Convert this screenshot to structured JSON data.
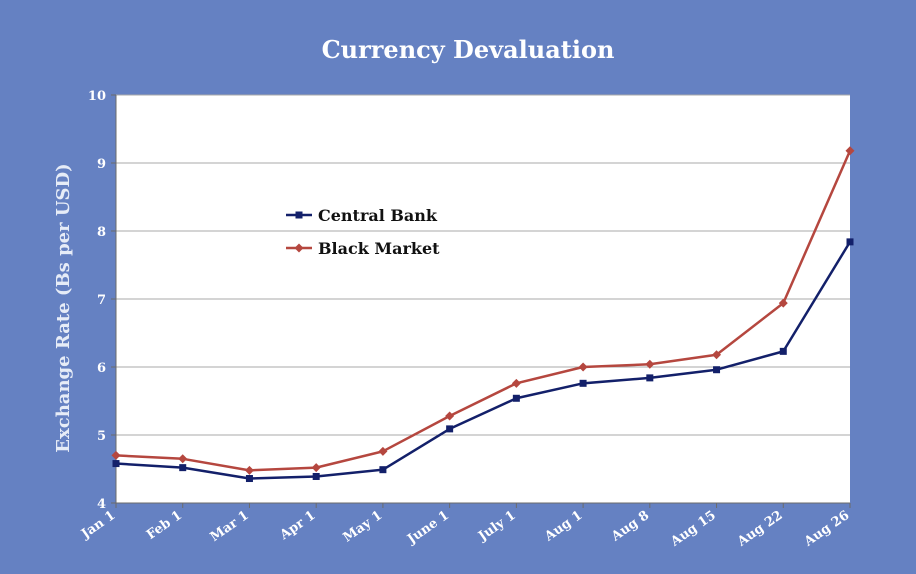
{
  "chart_data": {
    "type": "line",
    "title": "Currency Devaluation",
    "xlabel": "",
    "ylabel": "Exchange Rate (Bs per USD)",
    "categories": [
      "Jan 1",
      "Feb 1",
      "Mar 1",
      "Apr 1",
      "May 1",
      "June 1",
      "July 1",
      "Aug 1",
      "Aug 8",
      "Aug 15",
      "Aug 22",
      "Aug 26"
    ],
    "ylim": [
      4,
      10
    ],
    "yticks": [
      4,
      5,
      6,
      7,
      8,
      9,
      10
    ],
    "grid": true,
    "legend_position": "upper-left inside plot",
    "series": [
      {
        "name": "Central Bank",
        "color": "#13206a",
        "marker": "square",
        "values": [
          4.58,
          4.52,
          4.36,
          4.39,
          4.49,
          5.09,
          5.54,
          5.76,
          5.84,
          5.96,
          6.23,
          7.84
        ]
      },
      {
        "name": "Black Market",
        "color": "#b5473f",
        "marker": "diamond",
        "values": [
          4.7,
          4.65,
          4.48,
          4.52,
          4.76,
          5.28,
          5.76,
          6.0,
          6.04,
          6.18,
          6.94,
          9.18
        ]
      }
    ]
  }
}
